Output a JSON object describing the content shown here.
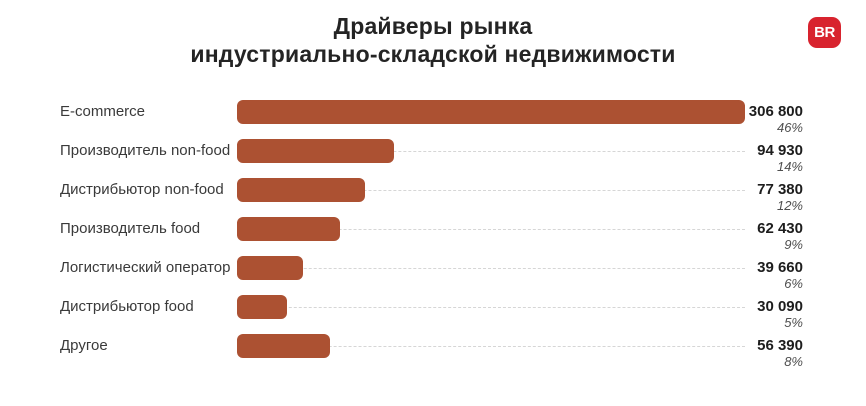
{
  "header": {
    "title_line1": "Драйверы рынка",
    "title_line2": "индустриально-складской недвижимости"
  },
  "logo": {
    "text": "BR",
    "bg_color": "#d8232e",
    "text_color": "#ffffff"
  },
  "chart_data": {
    "type": "bar",
    "orientation": "horizontal",
    "title": "Драйверы рынка индустриально-складской недвижимости",
    "categories": [
      "E-commerce",
      "Производитель non-food",
      "Дистрибьютор non-food",
      "Производитель food",
      "Логистический оператор",
      "Дистрибьютор food",
      "Другое"
    ],
    "values": [
      306800,
      94930,
      77380,
      62430,
      39660,
      30090,
      56390
    ],
    "value_labels": [
      "306 800",
      "94 930",
      "77 380",
      "62 430",
      "39 660",
      "30 090",
      "56 390"
    ],
    "percents": [
      46,
      14,
      12,
      9,
      6,
      5,
      8
    ],
    "percent_labels": [
      "46%",
      "14%",
      "12%",
      "9%",
      "6%",
      "5%",
      "8%"
    ],
    "xlim": [
      0,
      306800
    ],
    "bar_color": "#ac5132",
    "leader_line_color": "#d6d6d6",
    "grid": false,
    "legend": false
  }
}
